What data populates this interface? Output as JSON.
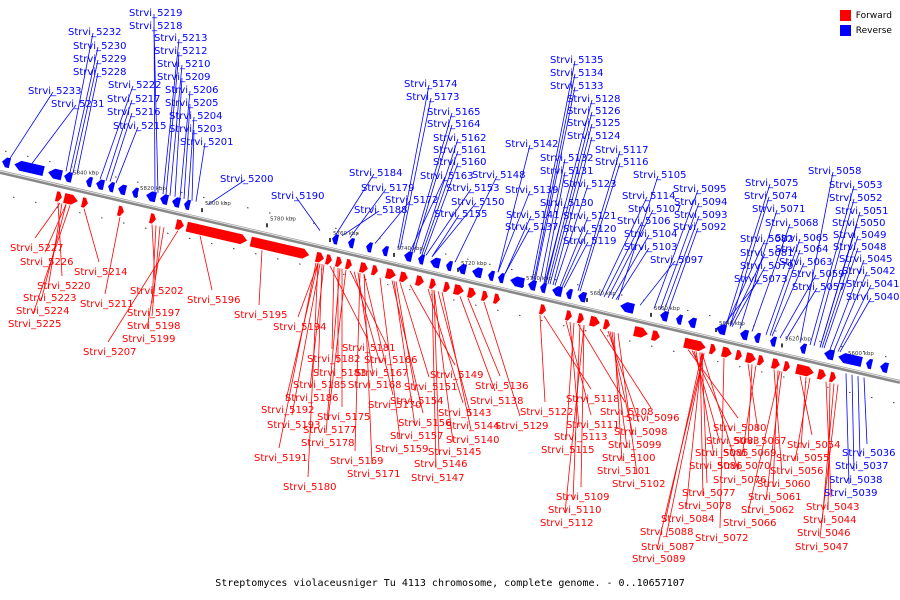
{
  "caption": "Streptomyces violaceusniger Tu 4113 chromosome, complete genome. - 0..10657107",
  "legend": [
    {
      "label": "Forward",
      "color": "#ff0000"
    },
    {
      "label": "Reverse",
      "color": "#0000ff"
    }
  ],
  "colors": {
    "forward": "#ff0000",
    "reverse": "#0000ff",
    "backbone": "#999999"
  },
  "ticks": [
    "5840 kbp",
    "5820 kbp",
    "5800 kbp",
    "5780 kbp",
    "5760 kbp",
    "5740 kbp",
    "5720 kbp",
    "5700 kbp",
    "5680 kbp",
    "5660 kbp",
    "5640 kbp",
    "5620 kbp",
    "5600 kbp"
  ],
  "reverse_labels": [
    "Strvi_5219",
    "Strvi_5218",
    "Strvi_5213",
    "Strvi_5212",
    "Strvi_5210",
    "Strvi_5209",
    "Strvi_5206",
    "Strvi_5205",
    "Strvi_5204",
    "Strvi_5203",
    "Strvi_5201",
    "Strvi_5232",
    "Strvi_5230",
    "Strvi_5229",
    "Strvi_5228",
    "Strvi_5222",
    "Strvi_5217",
    "Strvi_5216",
    "Strvi_5215",
    "Strvi_5233",
    "Strvi_5231",
    "Strvi_5200",
    "Strvi_5190",
    "Strvi_5184",
    "Strvi_5179",
    "Strvi_5188",
    "Strvi_5172",
    "Strvi_5174",
    "Strvi_5173",
    "Strvi_5165",
    "Strvi_5164",
    "Strvi_5162",
    "Strvi_5161",
    "Strvi_5160",
    "Strvi_5163",
    "Strvi_5153",
    "Strvi_5150",
    "Strvi_5155",
    "Strvi_5148",
    "Strvi_5142",
    "Strvi_5139",
    "Strvi_5141",
    "Strvi_5137",
    "Strvi_5135",
    "Strvi_5134",
    "Strvi_5133",
    "Strvi_5128",
    "Strvi_5126",
    "Strvi_5125",
    "Strvi_5124",
    "Strvi_5132",
    "Strvi_5131",
    "Strvi_5130",
    "Strvi_5123",
    "Strvi_5121",
    "Strvi_5120",
    "Strvi_5119",
    "Strvi_5117",
    "Strvi_5116",
    "Strvi_5114",
    "Strvi_5107",
    "Strvi_5106",
    "Strvi_5104",
    "Strvi_5103",
    "Strvi_5105",
    "Strvi_5097",
    "Strvi_5095",
    "Strvi_5094",
    "Strvi_5093",
    "Strvi_5092",
    "Strvi_5075",
    "Strvi_5074",
    "Strvi_5071",
    "Strvi_5068",
    "Strvi_5082",
    "Strvi_5081",
    "Strvi_5079",
    "Strvi_5073",
    "Strvi_5065",
    "Strvi_5064",
    "Strvi_5063",
    "Strvi_5059",
    "Strvi_5057",
    "Strvi_5058",
    "Strvi_5053",
    "Strvi_5052",
    "Strvi_5051",
    "Strvi_5050",
    "Strvi_5049",
    "Strvi_5048",
    "Strvi_5045",
    "Strvi_5042",
    "Strvi_5041",
    "Strvi_5040",
    "Strvi_5036",
    "Strvi_5037",
    "Strvi_5038",
    "Strvi_5039"
  ],
  "forward_labels": [
    "Strvi_5227",
    "Strvi_5226",
    "Strvi_5214",
    "Strvi_5220",
    "Strvi_5223",
    "Strvi_5224",
    "Strvi_5225",
    "Strvi_5211",
    "Strvi_5202",
    "Strvi_5197",
    "Strvi_5198",
    "Strvi_5199",
    "Strvi_5207",
    "Strvi_5196",
    "Strvi_5195",
    "Strvi_5194",
    "Strvi_5181",
    "Strvi_5182",
    "Strvi_5183",
    "Strvi_5185",
    "Strvi_5186",
    "Strvi_5192",
    "Strvi_5193",
    "Strvi_5191",
    "Strvi_5180",
    "Strvi_5166",
    "Strvi_5167",
    "Strvi_5168",
    "Strvi_5170",
    "Strvi_5175",
    "Strvi_5177",
    "Strvi_5178",
    "Strvi_5169",
    "Strvi_5171",
    "Strvi_5149",
    "Strvi_5151",
    "Strvi_5154",
    "Strvi_5156",
    "Strvi_5157",
    "Strvi_5159",
    "Strvi_5143",
    "Strvi_5144",
    "Strvi_5140",
    "Strvi_5145",
    "Strvi_5146",
    "Strvi_5147",
    "Strvi_5136",
    "Strvi_5138",
    "Strvi_5129",
    "Strvi_5118",
    "Strvi_5122",
    "Strvi_5108",
    "Strvi_5111",
    "Strvi_5113",
    "Strvi_5115",
    "Strvi_5109",
    "Strvi_5110",
    "Strvi_5112",
    "Strvi_5096",
    "Strvi_5098",
    "Strvi_5099",
    "Strvi_5100",
    "Strvi_5101",
    "Strvi_5102",
    "Strvi_5080",
    "Strvi_5083",
    "Strvi_5085",
    "Strvi_5086",
    "Strvi_5076",
    "Strvi_5077",
    "Strvi_5078",
    "Strvi_5084",
    "Strvi_5088",
    "Strvi_5087",
    "Strvi_5089",
    "Strvi_5072",
    "Strvi_5067",
    "Strvi_5069",
    "Strvi_5070",
    "Strvi_5060",
    "Strvi_5061",
    "Strvi_5062",
    "Strvi_5066",
    "Strvi_5054",
    "Strvi_5055",
    "Strvi_5056",
    "Strvi_5043",
    "Strvi_5044",
    "Strvi_5046",
    "Strvi_5047"
  ]
}
